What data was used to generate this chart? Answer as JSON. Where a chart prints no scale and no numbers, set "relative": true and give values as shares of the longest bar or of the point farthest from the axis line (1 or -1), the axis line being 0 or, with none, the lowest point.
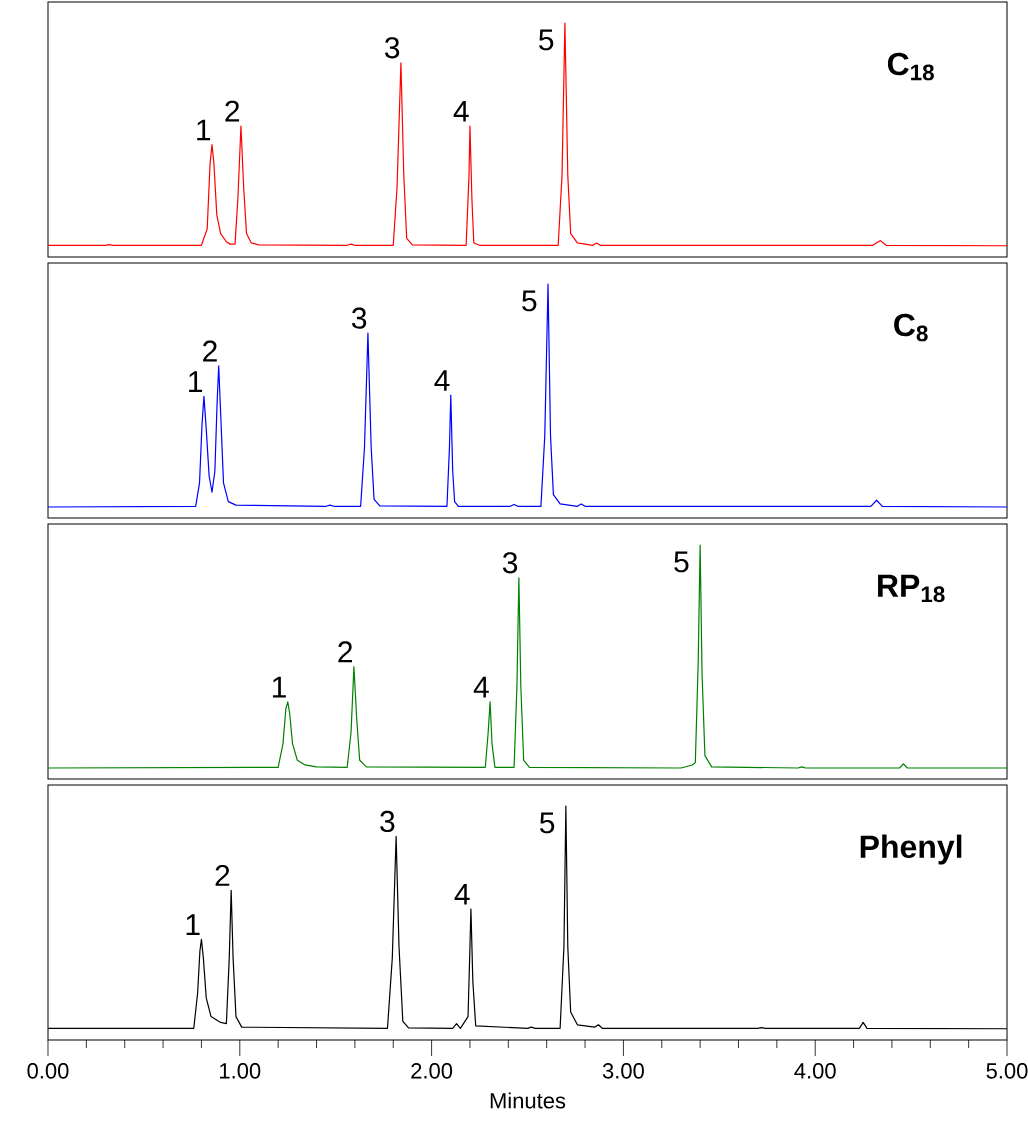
{
  "chart_data": [
    {
      "type": "line",
      "title": "C$_{18}$",
      "relative": true,
      "xlim": [
        0,
        5
      ],
      "series": [
        {
          "color": "#ff0000",
          "x": [
            0,
            0.3,
            0.32,
            0.34,
            0.8,
            0.83,
            0.845,
            0.855,
            0.865,
            0.88,
            0.9,
            0.93,
            0.95,
            0.975,
            0.99,
            1.006,
            1.02,
            1.035,
            1.06,
            1.1,
            1.56,
            1.58,
            1.6,
            1.8,
            1.82,
            1.84,
            1.855,
            1.87,
            1.9,
            2.18,
            2.195,
            2.2,
            2.21,
            2.22,
            2.25,
            2.66,
            2.68,
            2.695,
            2.71,
            2.725,
            2.76,
            2.84,
            2.86,
            2.88,
            4.3,
            4.34,
            4.37,
            5
          ],
          "values": [
            0.05,
            0.05,
            0.053,
            0.05,
            0.05,
            0.12,
            0.4,
            0.48,
            0.4,
            0.18,
            0.1,
            0.065,
            0.055,
            0.055,
            0.25,
            0.56,
            0.3,
            0.1,
            0.06,
            0.052,
            0.05,
            0.055,
            0.05,
            0.05,
            0.3,
            0.83,
            0.35,
            0.08,
            0.052,
            0.05,
            0.35,
            0.56,
            0.25,
            0.06,
            0.05,
            0.05,
            0.35,
            1,
            0.35,
            0.1,
            0.06,
            0.05,
            0.06,
            0.05,
            0.05,
            0.07,
            0.05,
            0.048
          ]
        }
      ],
      "annotations": [
        {
          "text": "1",
          "x": 0.855,
          "y": 0.48
        },
        {
          "text": "2",
          "x": 1.006,
          "y": 0.56
        },
        {
          "text": "3",
          "x": 1.84,
          "y": 0.83
        },
        {
          "text": "4",
          "x": 2.2,
          "y": 0.56
        },
        {
          "text": "5",
          "x": 2.695,
          "y": 1
        }
      ]
    },
    {
      "type": "line",
      "title": "C$_{8}$",
      "relative": true,
      "xlim": [
        0,
        5
      ],
      "series": [
        {
          "color": "#0000ff",
          "x": [
            0,
            0.77,
            0.79,
            0.803,
            0.813,
            0.825,
            0.84,
            0.855,
            0.87,
            0.882,
            0.89,
            0.9,
            0.915,
            0.94,
            0.98,
            1.45,
            1.47,
            1.49,
            1.63,
            1.65,
            1.668,
            1.685,
            1.7,
            1.73,
            2.08,
            2.093,
            2.1,
            2.11,
            2.12,
            2.14,
            2.41,
            2.43,
            2.45,
            2.57,
            2.59,
            2.607,
            2.62,
            2.635,
            2.67,
            2.76,
            2.78,
            2.8,
            4.29,
            4.32,
            4.35,
            5
          ],
          "values": [
            0.047,
            0.05,
            0.15,
            0.4,
            0.52,
            0.38,
            0.18,
            0.11,
            0.2,
            0.5,
            0.65,
            0.45,
            0.15,
            0.07,
            0.055,
            0.05,
            0.055,
            0.05,
            0.05,
            0.3,
            0.79,
            0.3,
            0.08,
            0.052,
            0.05,
            0.3,
            0.525,
            0.2,
            0.07,
            0.05,
            0.05,
            0.058,
            0.05,
            0.05,
            0.35,
            1,
            0.35,
            0.1,
            0.06,
            0.05,
            0.06,
            0.05,
            0.05,
            0.076,
            0.05,
            0.047
          ]
        }
      ],
      "annotations": [
        {
          "text": "1",
          "x": 0.813,
          "y": 0.52
        },
        {
          "text": "2",
          "x": 0.89,
          "y": 0.65
        },
        {
          "text": "3",
          "x": 1.668,
          "y": 0.79
        },
        {
          "text": "4",
          "x": 2.1,
          "y": 0.525
        },
        {
          "text": "5",
          "x": 2.607,
          "y": 1
        }
      ]
    },
    {
      "type": "line",
      "title": "RP$_{18}$",
      "relative": true,
      "xlim": [
        0,
        5
      ],
      "series": [
        {
          "color": "#008000",
          "x": [
            0,
            1.2,
            1.225,
            1.24,
            1.25,
            1.26,
            1.275,
            1.3,
            1.34,
            1.4,
            1.56,
            1.58,
            1.595,
            1.61,
            1.625,
            1.66,
            2.28,
            2.295,
            2.305,
            2.315,
            2.33,
            2.43,
            2.445,
            2.455,
            2.465,
            2.48,
            2.51,
            3.3,
            3.36,
            3.375,
            3.39,
            3.4,
            3.41,
            3.425,
            3.46,
            3.91,
            3.93,
            3.95,
            4.44,
            4.46,
            4.48,
            5
          ],
          "values": [
            0.047,
            0.05,
            0.15,
            0.3,
            0.33,
            0.28,
            0.15,
            0.08,
            0.06,
            0.052,
            0.05,
            0.2,
            0.48,
            0.25,
            0.08,
            0.052,
            0.05,
            0.2,
            0.33,
            0.15,
            0.05,
            0.05,
            0.4,
            0.86,
            0.4,
            0.08,
            0.05,
            0.047,
            0.06,
            0.07,
            0.5,
            1,
            0.45,
            0.1,
            0.052,
            0.047,
            0.052,
            0.047,
            0.047,
            0.065,
            0.047,
            0.047
          ]
        }
      ],
      "annotations": [
        {
          "text": "1",
          "x": 1.25,
          "y": 0.33
        },
        {
          "text": "2",
          "x": 1.595,
          "y": 0.48
        },
        {
          "text": "3",
          "x": 2.455,
          "y": 0.86
        },
        {
          "text": "4",
          "x": 2.305,
          "y": 0.33
        },
        {
          "text": "5",
          "x": 3.4,
          "y": 1
        }
      ]
    },
    {
      "type": "line",
      "title": "Phenyl",
      "relative": true,
      "xlabel": "Minutes",
      "xlim": [
        0,
        5
      ],
      "xticks": [
        {
          "value": 0,
          "label": "0.00"
        },
        {
          "value": 0.2,
          "label": null
        },
        {
          "value": 0.4,
          "label": null
        },
        {
          "value": 0.6,
          "label": null
        },
        {
          "value": 0.8,
          "label": null
        },
        {
          "value": 1,
          "label": "1.00"
        },
        {
          "value": 1.2,
          "label": null
        },
        {
          "value": 1.4,
          "label": null
        },
        {
          "value": 1.6,
          "label": null
        },
        {
          "value": 1.8,
          "label": null
        },
        {
          "value": 2,
          "label": "2.00"
        },
        {
          "value": 2.2,
          "label": null
        },
        {
          "value": 2.4,
          "label": null
        },
        {
          "value": 2.6,
          "label": null
        },
        {
          "value": 2.8,
          "label": null
        },
        {
          "value": 3,
          "label": "3.00"
        },
        {
          "value": 3.2,
          "label": null
        },
        {
          "value": 3.4,
          "label": null
        },
        {
          "value": 3.6,
          "label": null
        },
        {
          "value": 3.8,
          "label": null
        },
        {
          "value": 4,
          "label": "4.00"
        },
        {
          "value": 4.2,
          "label": null
        },
        {
          "value": 4.4,
          "label": null
        },
        {
          "value": 4.6,
          "label": null
        },
        {
          "value": 4.8,
          "label": null
        },
        {
          "value": 5,
          "label": "5.00"
        }
      ],
      "series": [
        {
          "color": "#000000",
          "x": [
            0,
            0.76,
            0.78,
            0.792,
            0.8,
            0.81,
            0.825,
            0.85,
            0.9,
            0.93,
            0.945,
            0.955,
            0.965,
            0.98,
            1.01,
            1.77,
            1.795,
            1.815,
            1.83,
            1.85,
            1.88,
            2.11,
            2.13,
            2.15,
            2.19,
            2.2,
            2.205,
            2.215,
            2.23,
            2.5,
            2.52,
            2.54,
            2.67,
            2.69,
            2.7,
            2.71,
            2.725,
            2.76,
            2.85,
            2.87,
            2.89,
            3.7,
            3.72,
            3.74,
            4.23,
            4.25,
            4.27,
            5
          ],
          "values": [
            0.05,
            0.05,
            0.2,
            0.38,
            0.43,
            0.35,
            0.18,
            0.1,
            0.075,
            0.07,
            0.35,
            0.64,
            0.35,
            0.1,
            0.055,
            0.05,
            0.35,
            0.87,
            0.4,
            0.08,
            0.052,
            0.05,
            0.07,
            0.05,
            0.1,
            0.4,
            0.56,
            0.25,
            0.06,
            0.05,
            0.055,
            0.05,
            0.05,
            0.4,
            1,
            0.4,
            0.12,
            0.065,
            0.055,
            0.065,
            0.05,
            0.05,
            0.053,
            0.05,
            0.05,
            0.075,
            0.05,
            0.048
          ]
        }
      ],
      "annotations": [
        {
          "text": "1",
          "x": 0.8,
          "y": 0.43
        },
        {
          "text": "2",
          "x": 0.955,
          "y": 0.64
        },
        {
          "text": "3",
          "x": 1.815,
          "y": 0.87
        },
        {
          "text": "4",
          "x": 2.205,
          "y": 0.56
        },
        {
          "text": "5",
          "x": 2.7,
          "y": 1
        }
      ]
    }
  ]
}
